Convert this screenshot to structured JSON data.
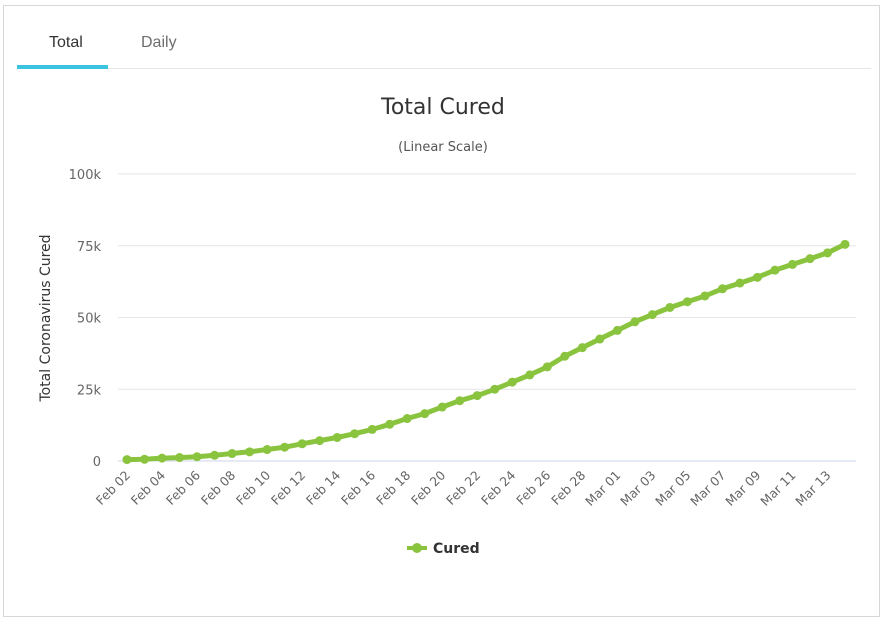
{
  "tabs": [
    {
      "label": "Total",
      "active": true
    },
    {
      "label": "Daily",
      "active": false
    }
  ],
  "colors": {
    "series": "#8ac43f",
    "tab_accent": "#3cc3e0",
    "grid": "#e6e6e6"
  },
  "chart_data": {
    "type": "line",
    "title": "Total Cured",
    "subtitle": "(Linear Scale)",
    "ylabel": "Total Coronavirus Cured",
    "xlabel": "",
    "ylim": [
      0,
      100000
    ],
    "yticks": [
      {
        "value": 0,
        "label": "0"
      },
      {
        "value": 25000,
        "label": "25k"
      },
      {
        "value": 50000,
        "label": "50k"
      },
      {
        "value": 75000,
        "label": "75k"
      },
      {
        "value": 100000,
        "label": "100k"
      }
    ],
    "x": [
      "Feb 02",
      "Feb 03",
      "Feb 04",
      "Feb 05",
      "Feb 06",
      "Feb 07",
      "Feb 08",
      "Feb 09",
      "Feb 10",
      "Feb 11",
      "Feb 12",
      "Feb 13",
      "Feb 14",
      "Feb 15",
      "Feb 16",
      "Feb 17",
      "Feb 18",
      "Feb 19",
      "Feb 20",
      "Feb 21",
      "Feb 22",
      "Feb 23",
      "Feb 24",
      "Feb 25",
      "Feb 26",
      "Feb 27",
      "Feb 28",
      "Feb 29",
      "Mar 01",
      "Mar 02",
      "Mar 03",
      "Mar 04",
      "Mar 05",
      "Mar 06",
      "Mar 07",
      "Mar 08",
      "Mar 09",
      "Mar 10",
      "Mar 11",
      "Mar 12",
      "Mar 13",
      "Mar 14"
    ],
    "xtick_labels": [
      "Feb 02",
      "Feb 04",
      "Feb 06",
      "Feb 08",
      "Feb 10",
      "Feb 12",
      "Feb 14",
      "Feb 16",
      "Feb 18",
      "Feb 20",
      "Feb 22",
      "Feb 24",
      "Feb 26",
      "Feb 28",
      "Mar 01",
      "Mar 03",
      "Mar 05",
      "Mar 07",
      "Mar 09",
      "Mar 11",
      "Mar 13"
    ],
    "series": [
      {
        "name": "Cured",
        "values": [
          500,
          600,
          1000,
          1200,
          1500,
          2000,
          2600,
          3200,
          4000,
          4800,
          6000,
          7100,
          8200,
          9500,
          11000,
          12800,
          14800,
          16500,
          18800,
          21000,
          22800,
          25000,
          27500,
          30000,
          32800,
          36500,
          39500,
          42500,
          45500,
          48500,
          51000,
          53500,
          55500,
          57500,
          60000,
          62000,
          64000,
          66500,
          68500,
          70500,
          72500,
          75500
        ]
      }
    ],
    "grid": true,
    "legend": "bottom-center"
  }
}
